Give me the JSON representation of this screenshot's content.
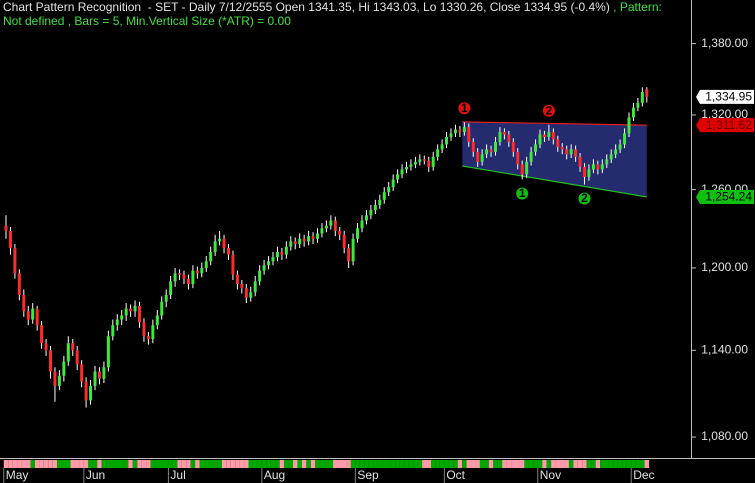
{
  "chart_data": {
    "type": "candlestick",
    "title": "Chart Pattern Recognition  - SET - Daily 7/12/2555 Open 1341.35, Hi 1343.03, Lo 1330.26, Close 1334.95 (-0.4%)",
    "pattern_label": " , Pattern:",
    "subtitle": "Not defined , Bars = 5, Min.Vertical Size (*ATR) = 0.00",
    "log_scale": true,
    "ylim": [
      1066,
      1418
    ],
    "yticks": [
      {
        "value": 1080,
        "label": "1,080.00"
      },
      {
        "value": 1140,
        "label": "1,140.00"
      },
      {
        "value": 1200,
        "label": "1,200.00"
      },
      {
        "value": 1260,
        "label": "1,260.00"
      },
      {
        "value": 1320,
        "label": "1,320.00"
      },
      {
        "value": 1380,
        "label": "1,380.00"
      }
    ],
    "up_color": "#3ee83e",
    "down_color": "#ff2a2a",
    "wick_color": "#ffffff",
    "categories": [
      "May",
      null,
      null,
      null,
      null,
      null,
      null,
      null,
      null,
      null,
      null,
      null,
      null,
      null,
      null,
      null,
      null,
      null,
      "Jun",
      null,
      null,
      null,
      null,
      null,
      null,
      null,
      null,
      null,
      null,
      null,
      null,
      null,
      null,
      null,
      null,
      null,
      null,
      "Jul",
      null,
      null,
      null,
      null,
      null,
      null,
      null,
      null,
      null,
      null,
      null,
      null,
      null,
      null,
      null,
      null,
      null,
      null,
      null,
      null,
      "Aug",
      null,
      null,
      null,
      null,
      null,
      null,
      null,
      null,
      null,
      null,
      null,
      null,
      null,
      null,
      null,
      null,
      null,
      null,
      null,
      null,
      "Sep",
      null,
      null,
      null,
      null,
      null,
      null,
      null,
      null,
      null,
      null,
      null,
      null,
      null,
      null,
      null,
      null,
      null,
      null,
      null,
      "Oct",
      null,
      null,
      null,
      null,
      null,
      null,
      null,
      null,
      null,
      null,
      null,
      null,
      null,
      null,
      null,
      null,
      null,
      null,
      null,
      null,
      "Nov",
      null,
      null,
      null,
      null,
      null,
      null,
      null,
      null,
      null,
      null,
      null,
      null,
      null,
      null,
      null,
      null,
      null,
      null,
      null,
      null,
      "Dec",
      null,
      null,
      null
    ],
    "ohlc": [
      [
        1232,
        1240,
        1222,
        1228
      ],
      [
        1228,
        1231,
        1210,
        1215
      ],
      [
        1215,
        1218,
        1192,
        1196
      ],
      [
        1196,
        1199,
        1176,
        1180
      ],
      [
        1180,
        1184,
        1164,
        1168
      ],
      [
        1168,
        1172,
        1158,
        1162
      ],
      [
        1162,
        1174,
        1159,
        1170
      ],
      [
        1170,
        1172,
        1154,
        1158
      ],
      [
        1158,
        1161,
        1141,
        1145
      ],
      [
        1145,
        1148,
        1136,
        1140
      ],
      [
        1140,
        1143,
        1120,
        1125
      ],
      [
        1125,
        1128,
        1104,
        1115
      ],
      [
        1115,
        1126,
        1112,
        1122
      ],
      [
        1122,
        1136,
        1118,
        1132
      ],
      [
        1132,
        1150,
        1129,
        1145
      ],
      [
        1145,
        1148,
        1136,
        1140
      ],
      [
        1140,
        1143,
        1126,
        1130
      ],
      [
        1130,
        1133,
        1114,
        1118
      ],
      [
        1118,
        1121,
        1100,
        1105
      ],
      [
        1105,
        1119,
        1102,
        1115
      ],
      [
        1115,
        1129,
        1112,
        1125
      ],
      [
        1125,
        1128,
        1116,
        1120
      ],
      [
        1120,
        1132,
        1117,
        1128
      ],
      [
        1128,
        1154,
        1125,
        1150
      ],
      [
        1150,
        1162,
        1147,
        1158
      ],
      [
        1158,
        1166,
        1154,
        1162
      ],
      [
        1162,
        1169,
        1158,
        1165
      ],
      [
        1165,
        1174,
        1161,
        1170
      ],
      [
        1170,
        1173,
        1164,
        1168
      ],
      [
        1168,
        1176,
        1164,
        1172
      ],
      [
        1172,
        1175,
        1156,
        1160
      ],
      [
        1160,
        1163,
        1146,
        1150
      ],
      [
        1150,
        1153,
        1144,
        1148
      ],
      [
        1148,
        1162,
        1145,
        1158
      ],
      [
        1158,
        1169,
        1155,
        1165
      ],
      [
        1165,
        1179,
        1162,
        1175
      ],
      [
        1175,
        1184,
        1171,
        1180
      ],
      [
        1180,
        1194,
        1177,
        1190
      ],
      [
        1190,
        1200,
        1186,
        1196
      ],
      [
        1196,
        1199,
        1191,
        1195
      ],
      [
        1195,
        1198,
        1188,
        1192
      ],
      [
        1192,
        1195,
        1184,
        1188
      ],
      [
        1188,
        1202,
        1185,
        1198
      ],
      [
        1198,
        1201,
        1192,
        1196
      ],
      [
        1196,
        1204,
        1193,
        1200
      ],
      [
        1200,
        1209,
        1197,
        1205
      ],
      [
        1205,
        1216,
        1202,
        1212
      ],
      [
        1212,
        1225,
        1209,
        1220
      ],
      [
        1220,
        1228,
        1217,
        1222
      ],
      [
        1222,
        1225,
        1211,
        1215
      ],
      [
        1215,
        1218,
        1206,
        1210
      ],
      [
        1210,
        1213,
        1191,
        1195
      ],
      [
        1195,
        1198,
        1184,
        1188
      ],
      [
        1188,
        1191,
        1181,
        1185
      ],
      [
        1185,
        1188,
        1174,
        1178
      ],
      [
        1178,
        1186,
        1175,
        1182
      ],
      [
        1182,
        1194,
        1179,
        1190
      ],
      [
        1190,
        1202,
        1187,
        1198
      ],
      [
        1198,
        1206,
        1195,
        1202
      ],
      [
        1202,
        1209,
        1199,
        1205
      ],
      [
        1205,
        1212,
        1202,
        1208
      ],
      [
        1208,
        1216,
        1205,
        1212
      ],
      [
        1212,
        1215,
        1206,
        1210
      ],
      [
        1210,
        1220,
        1207,
        1216
      ],
      [
        1216,
        1224,
        1213,
        1220
      ],
      [
        1220,
        1223,
        1214,
        1218
      ],
      [
        1218,
        1226,
        1215,
        1222
      ],
      [
        1222,
        1225,
        1216,
        1220
      ],
      [
        1220,
        1228,
        1217,
        1224
      ],
      [
        1224,
        1227,
        1218,
        1222
      ],
      [
        1222,
        1230,
        1219,
        1226
      ],
      [
        1226,
        1234,
        1223,
        1230
      ],
      [
        1230,
        1236,
        1227,
        1232
      ],
      [
        1232,
        1240,
        1229,
        1236
      ],
      [
        1236,
        1239,
        1224,
        1228
      ],
      [
        1228,
        1231,
        1221,
        1225
      ],
      [
        1225,
        1228,
        1211,
        1215
      ],
      [
        1215,
        1218,
        1200,
        1205
      ],
      [
        1205,
        1226,
        1202,
        1222
      ],
      [
        1222,
        1234,
        1219,
        1230
      ],
      [
        1230,
        1240,
        1227,
        1236
      ],
      [
        1236,
        1244,
        1233,
        1240
      ],
      [
        1240,
        1248,
        1237,
        1244
      ],
      [
        1244,
        1252,
        1241,
        1248
      ],
      [
        1248,
        1256,
        1245,
        1252
      ],
      [
        1252,
        1262,
        1249,
        1258
      ],
      [
        1258,
        1266,
        1255,
        1262
      ],
      [
        1262,
        1272,
        1259,
        1268
      ],
      [
        1268,
        1276,
        1265,
        1272
      ],
      [
        1272,
        1280,
        1269,
        1276
      ],
      [
        1276,
        1282,
        1273,
        1278
      ],
      [
        1278,
        1284,
        1275,
        1280
      ],
      [
        1280,
        1286,
        1277,
        1282
      ],
      [
        1282,
        1288,
        1279,
        1284
      ],
      [
        1284,
        1287,
        1280,
        1283
      ],
      [
        1283,
        1286,
        1274,
        1278
      ],
      [
        1278,
        1290,
        1275,
        1286
      ],
      [
        1286,
        1296,
        1283,
        1292
      ],
      [
        1292,
        1300,
        1289,
        1296
      ],
      [
        1296,
        1306,
        1293,
        1302
      ],
      [
        1302,
        1309,
        1299,
        1305
      ],
      [
        1305,
        1312,
        1302,
        1308
      ],
      [
        1308,
        1311,
        1302,
        1306
      ],
      [
        1306,
        1314,
        1303,
        1310
      ],
      [
        1310,
        1313,
        1294,
        1298
      ],
      [
        1298,
        1301,
        1286,
        1290
      ],
      [
        1290,
        1293,
        1278,
        1282
      ],
      [
        1282,
        1292,
        1279,
        1288
      ],
      [
        1288,
        1296,
        1285,
        1292
      ],
      [
        1292,
        1295,
        1286,
        1290
      ],
      [
        1290,
        1302,
        1287,
        1298
      ],
      [
        1298,
        1310,
        1295,
        1306
      ],
      [
        1306,
        1309,
        1300,
        1304
      ],
      [
        1304,
        1307,
        1294,
        1298
      ],
      [
        1298,
        1301,
        1286,
        1290
      ],
      [
        1290,
        1293,
        1276,
        1280
      ],
      [
        1280,
        1283,
        1268,
        1272
      ],
      [
        1272,
        1286,
        1269,
        1282
      ],
      [
        1282,
        1294,
        1279,
        1290
      ],
      [
        1290,
        1300,
        1287,
        1296
      ],
      [
        1296,
        1308,
        1293,
        1304
      ],
      [
        1304,
        1307,
        1298,
        1302
      ],
      [
        1302,
        1312,
        1299,
        1306
      ],
      [
        1306,
        1309,
        1296,
        1300
      ],
      [
        1300,
        1303,
        1290,
        1294
      ],
      [
        1294,
        1297,
        1288,
        1292
      ],
      [
        1292,
        1295,
        1284,
        1288
      ],
      [
        1288,
        1296,
        1285,
        1292
      ],
      [
        1292,
        1295,
        1282,
        1286
      ],
      [
        1286,
        1289,
        1274,
        1278
      ],
      [
        1278,
        1281,
        1264,
        1270
      ],
      [
        1270,
        1280,
        1267,
        1276
      ],
      [
        1276,
        1284,
        1273,
        1280
      ],
      [
        1280,
        1283,
        1272,
        1276
      ],
      [
        1276,
        1284,
        1273,
        1280
      ],
      [
        1280,
        1288,
        1277,
        1284
      ],
      [
        1284,
        1292,
        1281,
        1288
      ],
      [
        1288,
        1296,
        1285,
        1292
      ],
      [
        1292,
        1300,
        1289,
        1296
      ],
      [
        1296,
        1309,
        1293,
        1305
      ],
      [
        1305,
        1322,
        1302,
        1318
      ],
      [
        1318,
        1330,
        1315,
        1326
      ],
      [
        1326,
        1334,
        1323,
        1330
      ],
      [
        1330,
        1343,
        1327,
        1339
      ],
      [
        1341.35,
        1343.03,
        1330.26,
        1334.95
      ]
    ],
    "last_label": "1,334.95",
    "pattern": {
      "start_bar": 103,
      "end_bar": 144,
      "fill": "#28307a",
      "upper": {
        "color": "#e02020",
        "start": 1314.3,
        "end": 1311.62,
        "end_label": "1,311.62"
      },
      "lower": {
        "color": "#20c020",
        "start": 1278.7,
        "end": 1254.24,
        "end_label": "1,254.24"
      },
      "pivots": [
        {
          "label": "1",
          "kind": "peak",
          "bar": 103
        },
        {
          "label": "2",
          "kind": "peak",
          "bar": 122
        },
        {
          "label": "1",
          "kind": "trough",
          "bar": 116
        },
        {
          "label": "2",
          "kind": "trough",
          "bar": 130
        }
      ]
    }
  }
}
